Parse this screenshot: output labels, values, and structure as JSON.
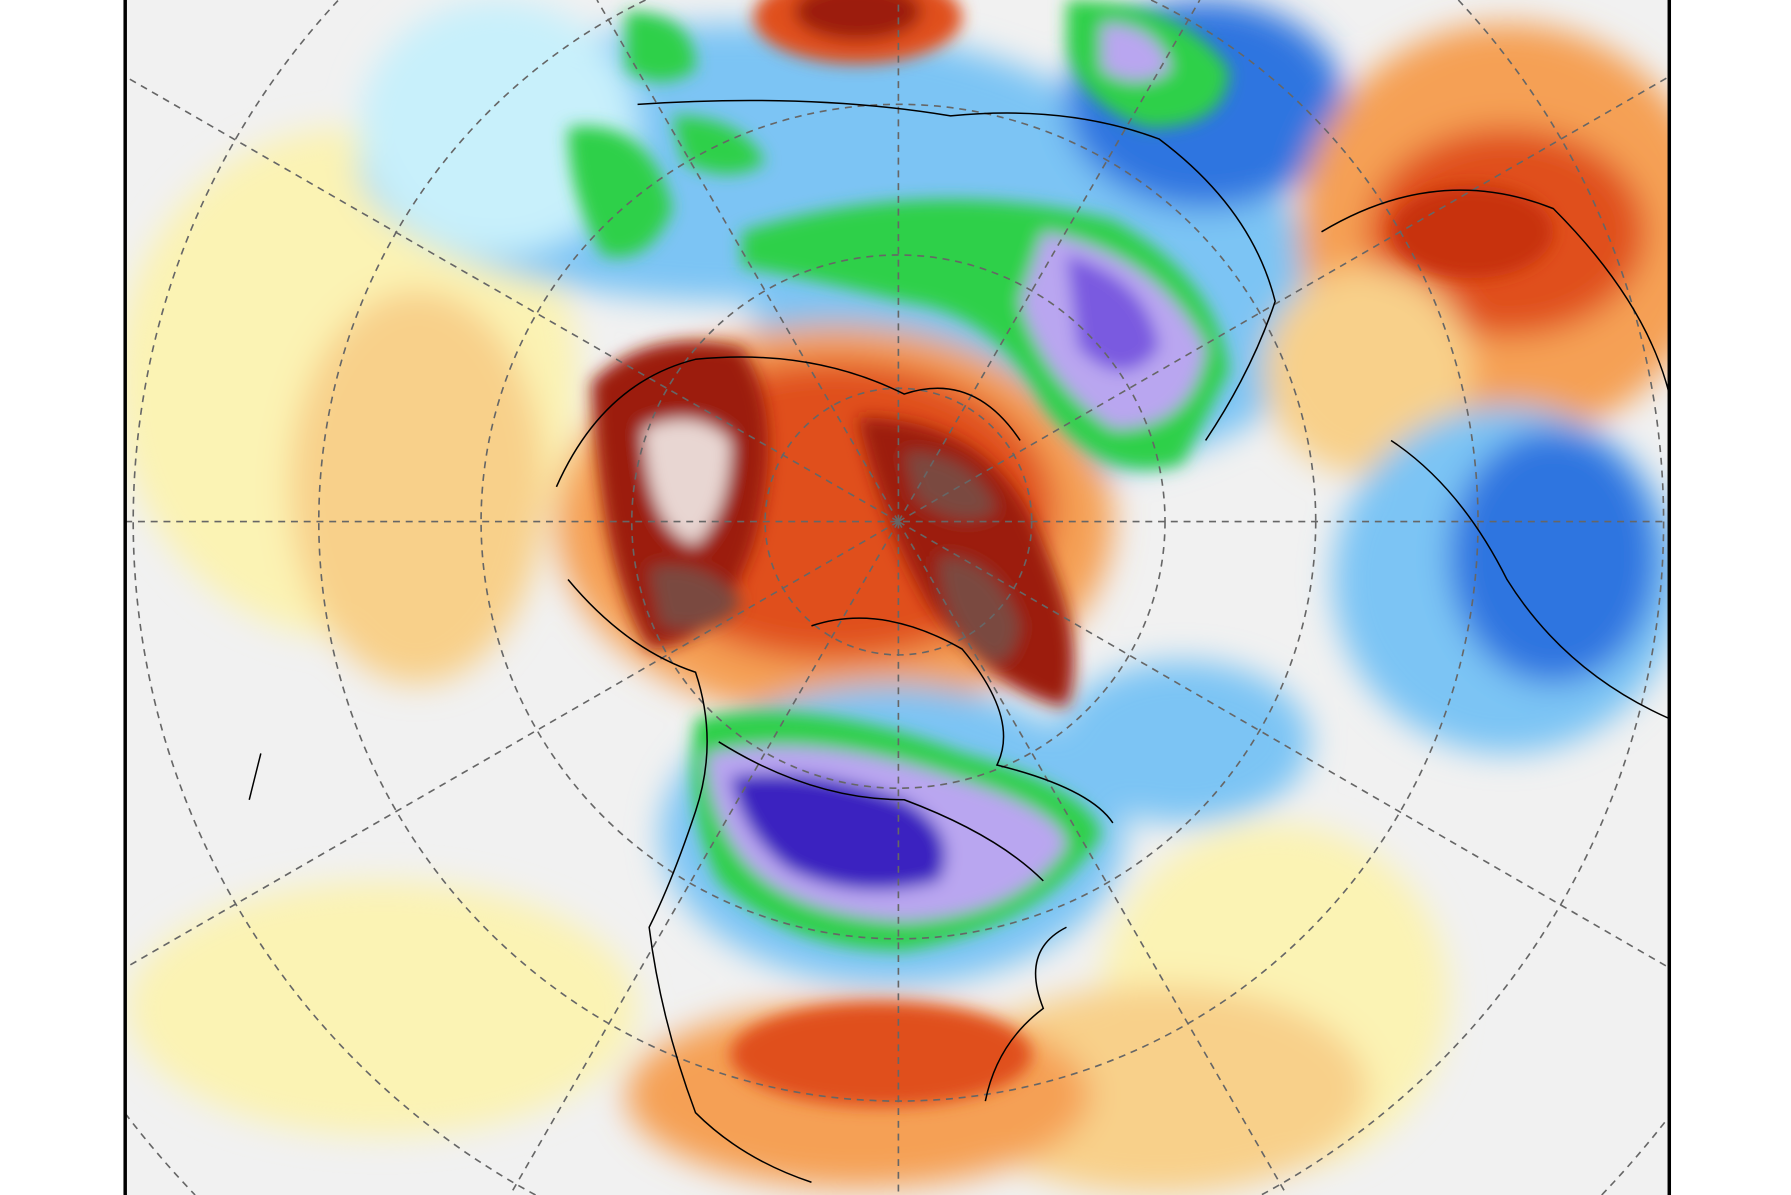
{
  "map": {
    "colors": {
      "background": "#f1f1f1",
      "pale_yellow": "#fbf3b4",
      "yellow_orange": "#f8d08a",
      "orange": "#f5a055",
      "red_orange": "#e0501e",
      "dark_red": "#9c1c08",
      "brown": "#7a4a40",
      "pinkish_white": "#e8d6d2",
      "light_cyan": "#c8f0fb",
      "light_blue": "#7cc4f4",
      "blue": "#2f74e0",
      "green": "#2fd04a",
      "light_purple": "#b9a6f0",
      "purple": "#7a5ae0",
      "deep_purple": "#3a20c0",
      "grid": "#666666",
      "coast": "#000000"
    }
  }
}
